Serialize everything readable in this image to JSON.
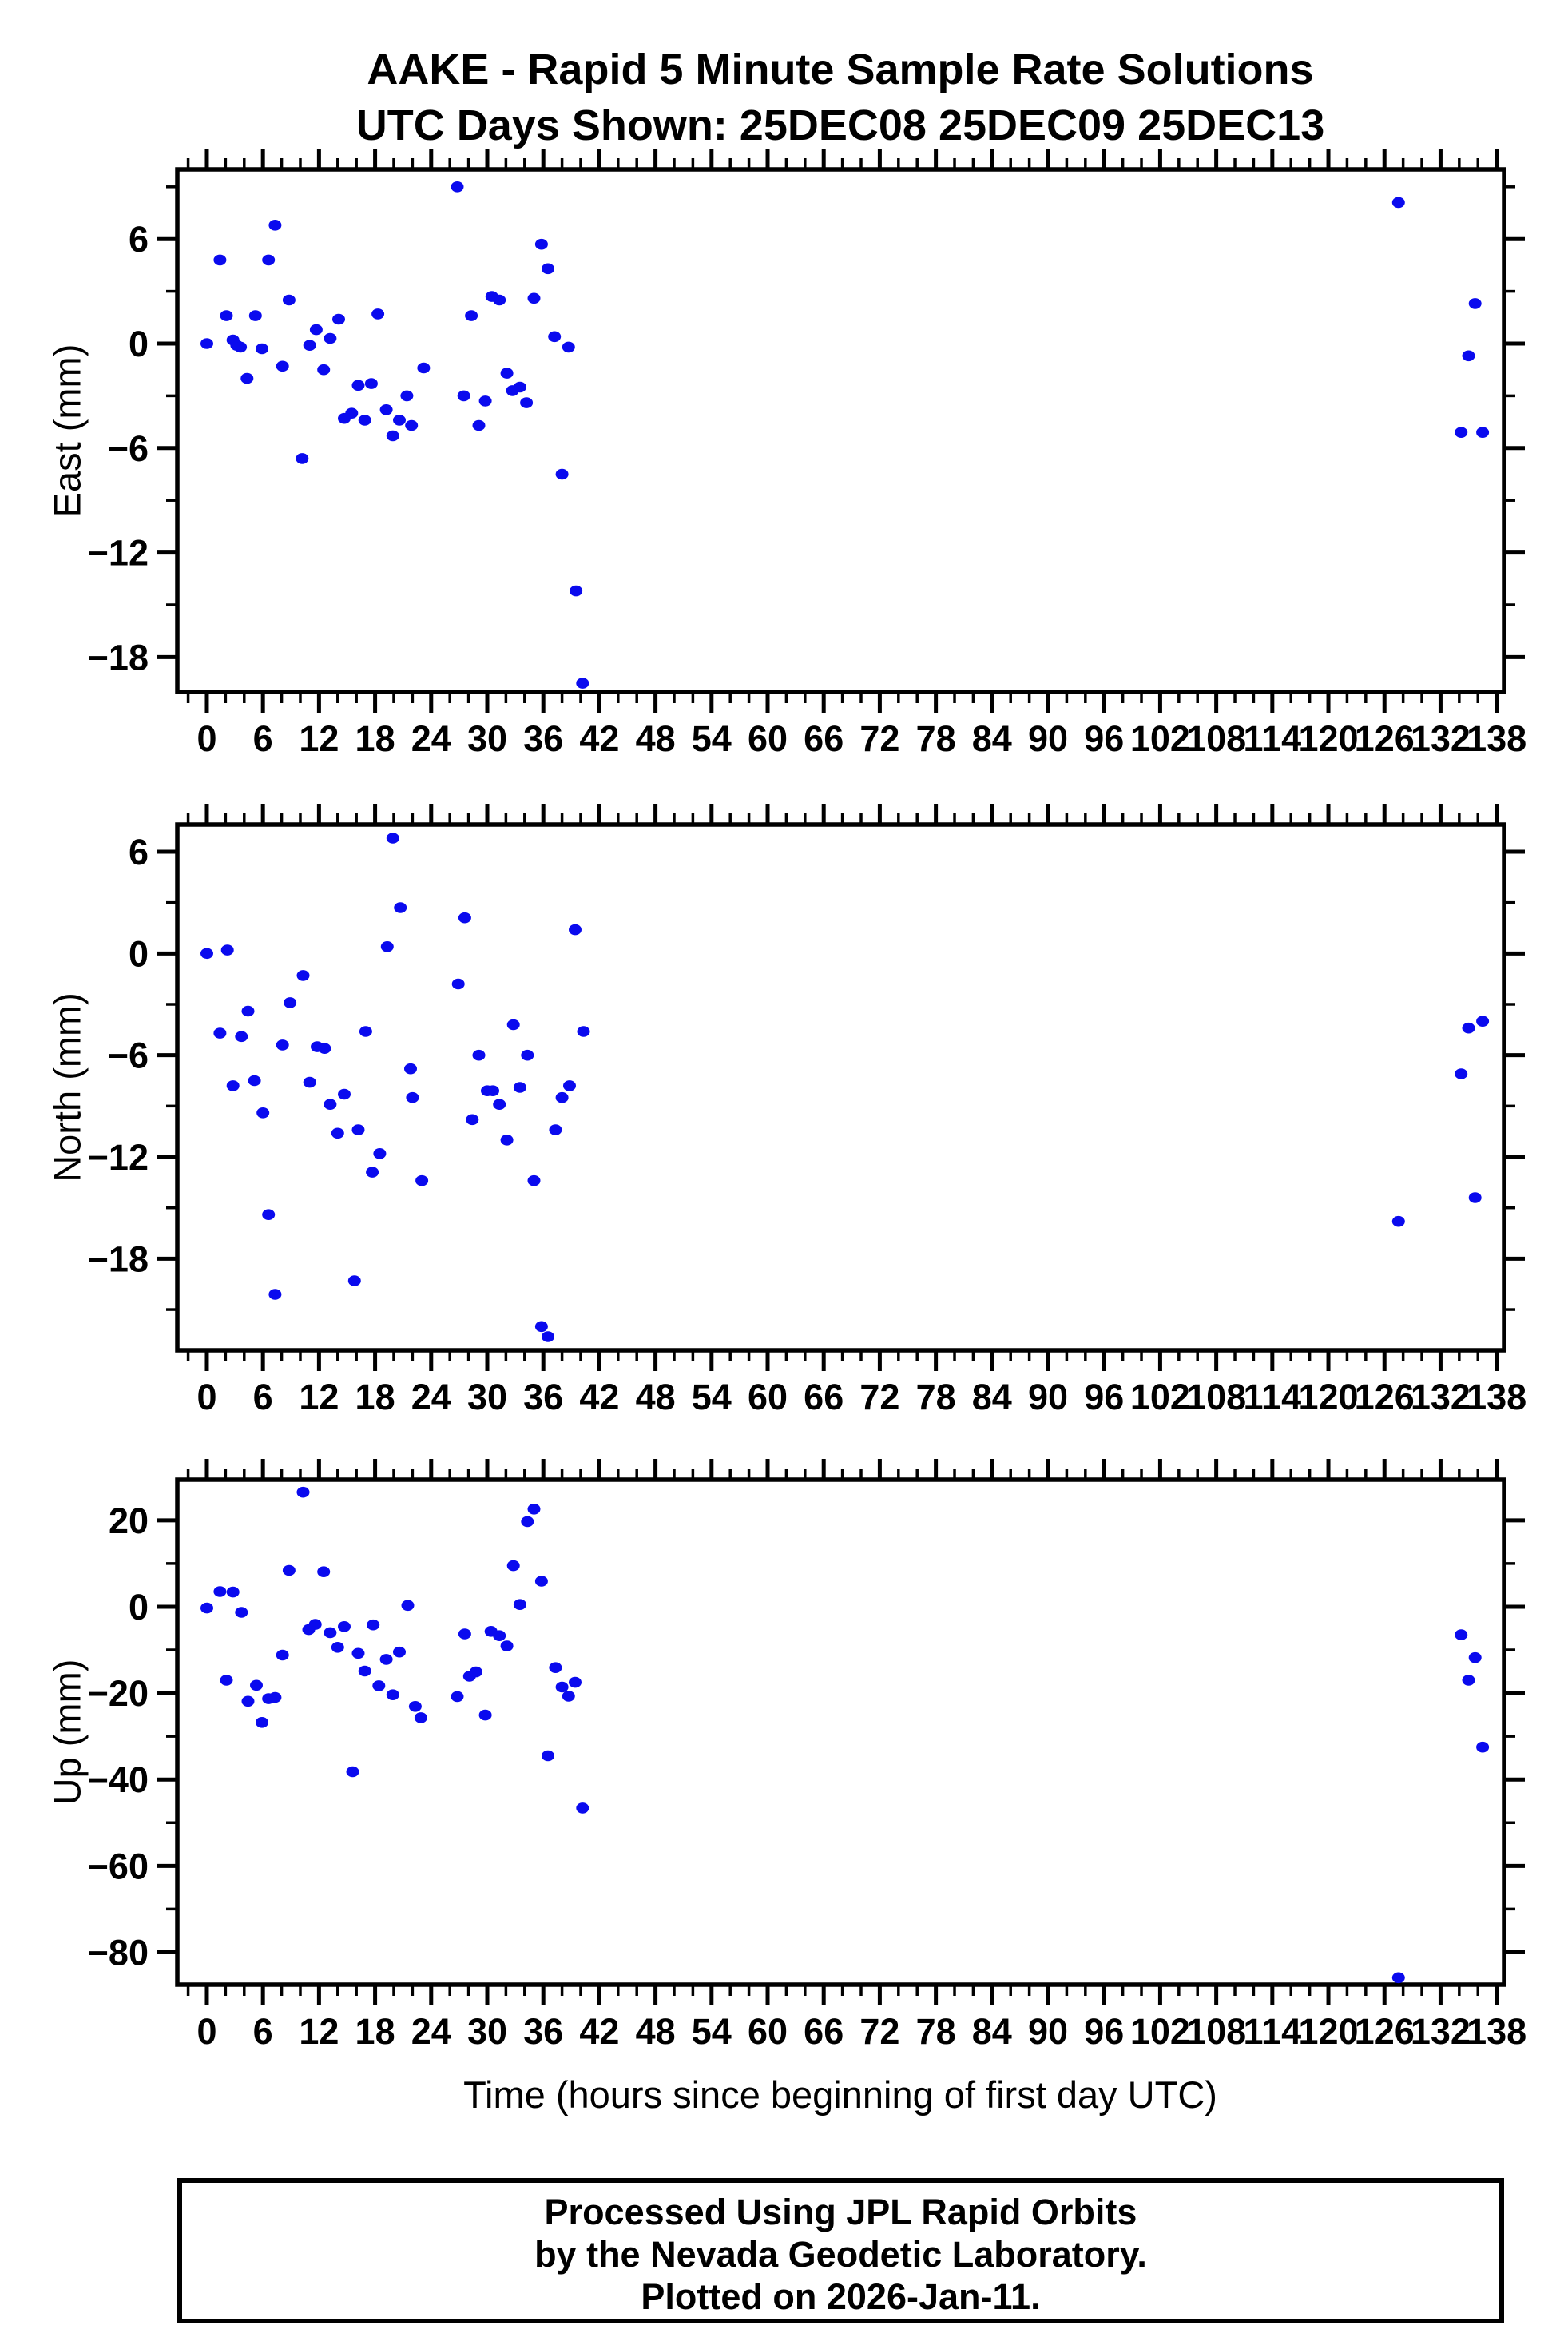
{
  "title": {
    "line1": "AAKE - Rapid 5 Minute Sample Rate Solutions",
    "line2": "UTC Days Shown:  25DEC08 25DEC09 25DEC13"
  },
  "point_color": "#0a0aee",
  "xaxis": {
    "title": "Time (hours since beginning of first day UTC)",
    "min": -3.16,
    "max": 138.8,
    "major_min": 0,
    "major_max": 138,
    "major_step": 6,
    "minor_step": 2
  },
  "chart_data": [
    {
      "type": "scatter",
      "name": "east",
      "ylabel": "East (mm)",
      "ylim": [
        -20,
        10
      ],
      "ymajor": [
        6,
        0,
        -6,
        -12,
        -18
      ],
      "yminor_step": 3,
      "points": [
        [
          0,
          0
        ],
        [
          1.4,
          4.8
        ],
        [
          2.1,
          1.6
        ],
        [
          2.8,
          0.2
        ],
        [
          3.2,
          -0.1
        ],
        [
          3.6,
          -0.2
        ],
        [
          4.3,
          -2
        ],
        [
          5.2,
          1.6
        ],
        [
          5.9,
          -0.3
        ],
        [
          6.6,
          4.8
        ],
        [
          7.3,
          6.8
        ],
        [
          8.1,
          -1.3
        ],
        [
          8.8,
          2.5
        ],
        [
          10.2,
          -6.6
        ],
        [
          11,
          -0.1
        ],
        [
          11.7,
          0.8
        ],
        [
          12.5,
          -1.5
        ],
        [
          13.2,
          0.3
        ],
        [
          14.1,
          1.4
        ],
        [
          14.7,
          -4.3
        ],
        [
          15.5,
          -4
        ],
        [
          16.2,
          -2.4
        ],
        [
          16.9,
          -4.4
        ],
        [
          17.6,
          -2.3
        ],
        [
          18.3,
          1.7
        ],
        [
          19.2,
          -3.8
        ],
        [
          19.9,
          -5.3
        ],
        [
          20.6,
          -4.4
        ],
        [
          21.4,
          -3
        ],
        [
          21.9,
          -4.7
        ],
        [
          23.2,
          -1.4
        ],
        [
          26.8,
          9
        ],
        [
          27.5,
          -3
        ],
        [
          28.3,
          1.6
        ],
        [
          29.1,
          -4.7
        ],
        [
          29.8,
          -3.3
        ],
        [
          30.5,
          2.7
        ],
        [
          31.3,
          2.5
        ],
        [
          32.1,
          -1.7
        ],
        [
          32.7,
          -2.7
        ],
        [
          33.5,
          -2.5
        ],
        [
          34.2,
          -3.4
        ],
        [
          35,
          2.6
        ],
        [
          35.8,
          5.7
        ],
        [
          36.5,
          4.3
        ],
        [
          37.2,
          0.4
        ],
        [
          38,
          -7.5
        ],
        [
          38.7,
          -0.2
        ],
        [
          39.5,
          -14.2
        ],
        [
          40.2,
          -19.5
        ],
        [
          127.5,
          8.1
        ],
        [
          134.2,
          -5.1
        ],
        [
          135,
          -0.7
        ],
        [
          135.7,
          2.3
        ],
        [
          136.5,
          -5.1
        ]
      ]
    },
    {
      "type": "scatter",
      "name": "north",
      "ylabel": "North (mm)",
      "ylim": [
        -23.4,
        7.6
      ],
      "ymajor": [
        6,
        0,
        -6,
        -12,
        -18
      ],
      "yminor_step": 3,
      "points": [
        [
          0,
          0
        ],
        [
          1.4,
          -4.7
        ],
        [
          2.2,
          0.2
        ],
        [
          2.8,
          -7.8
        ],
        [
          3.7,
          -4.9
        ],
        [
          4.4,
          -3.4
        ],
        [
          5.1,
          -7.5
        ],
        [
          6,
          -9.4
        ],
        [
          6.6,
          -15.4
        ],
        [
          7.3,
          -20.1
        ],
        [
          8.1,
          -5.4
        ],
        [
          8.9,
          -2.9
        ],
        [
          10.3,
          -1.3
        ],
        [
          11,
          -7.6
        ],
        [
          11.8,
          -5.5
        ],
        [
          12.6,
          -5.6
        ],
        [
          13.2,
          -8.9
        ],
        [
          14,
          -10.6
        ],
        [
          14.7,
          -8.3
        ],
        [
          15.8,
          -19.3
        ],
        [
          16.2,
          -10.4
        ],
        [
          17,
          -4.6
        ],
        [
          17.7,
          -12.9
        ],
        [
          18.5,
          -11.8
        ],
        [
          19.3,
          0.4
        ],
        [
          19.9,
          6.8
        ],
        [
          20.7,
          2.7
        ],
        [
          21.8,
          -6.8
        ],
        [
          22,
          -8.5
        ],
        [
          23,
          -13.4
        ],
        [
          26.9,
          -1.8
        ],
        [
          27.6,
          2.1
        ],
        [
          28.4,
          -9.8
        ],
        [
          29.1,
          -6
        ],
        [
          30,
          -8.1
        ],
        [
          30.6,
          -8.1
        ],
        [
          31.3,
          -8.9
        ],
        [
          32.1,
          -11
        ],
        [
          32.8,
          -4.2
        ],
        [
          33.5,
          -7.9
        ],
        [
          34.3,
          -6
        ],
        [
          35,
          -13.4
        ],
        [
          35.8,
          -22
        ],
        [
          36.5,
          -22.6
        ],
        [
          37.3,
          -10.4
        ],
        [
          38,
          -8.5
        ],
        [
          38.8,
          -7.8
        ],
        [
          39.4,
          1.4
        ],
        [
          40.3,
          -4.6
        ],
        [
          127.5,
          -15.8
        ],
        [
          134.2,
          -7.1
        ],
        [
          135,
          -4.4
        ],
        [
          135.7,
          -14.4
        ],
        [
          136.5,
          -4
        ]
      ]
    },
    {
      "type": "scatter",
      "name": "up",
      "ylabel": "Up (mm)",
      "ylim": [
        -87.5,
        29.4
      ],
      "ymajor": [
        20,
        0,
        -20,
        -40,
        -60,
        -80
      ],
      "yminor_step": 10,
      "points": [
        [
          0,
          -0.3
        ],
        [
          1.4,
          3.5
        ],
        [
          2.1,
          -17
        ],
        [
          2.8,
          3.4
        ],
        [
          3.7,
          -1.3
        ],
        [
          4.4,
          -21.9
        ],
        [
          5.3,
          -18.2
        ],
        [
          5.9,
          -26.8
        ],
        [
          6.6,
          -21.3
        ],
        [
          7.3,
          -21
        ],
        [
          8.1,
          -11.2
        ],
        [
          8.8,
          8.4
        ],
        [
          10.3,
          26.5
        ],
        [
          10.9,
          -5.3
        ],
        [
          11.6,
          -4.1
        ],
        [
          12.5,
          8.1
        ],
        [
          13.2,
          -6
        ],
        [
          14,
          -9.4
        ],
        [
          14.7,
          -4.6
        ],
        [
          15.6,
          -38.2
        ],
        [
          16.2,
          -10.8
        ],
        [
          16.9,
          -14.9
        ],
        [
          17.8,
          -4.2
        ],
        [
          18.4,
          -18.3
        ],
        [
          19.2,
          -12.2
        ],
        [
          19.9,
          -20.4
        ],
        [
          20.6,
          -10.5
        ],
        [
          21.5,
          0.3
        ],
        [
          22.3,
          -23.1
        ],
        [
          22.9,
          -25.7
        ],
        [
          26.8,
          -20.8
        ],
        [
          27.6,
          -6.3
        ],
        [
          28.1,
          -16.1
        ],
        [
          28.8,
          -15.1
        ],
        [
          29.8,
          -25.1
        ],
        [
          30.4,
          -5.7
        ],
        [
          31.3,
          -6.7
        ],
        [
          32.1,
          -9.1
        ],
        [
          32.8,
          9.5
        ],
        [
          33.5,
          0.5
        ],
        [
          34.3,
          19.7
        ],
        [
          35,
          22.6
        ],
        [
          35.8,
          5.9
        ],
        [
          36.5,
          -34.5
        ],
        [
          37.3,
          -14.1
        ],
        [
          38,
          -18.6
        ],
        [
          38.7,
          -20.7
        ],
        [
          39.4,
          -17.5
        ],
        [
          40.2,
          -46.6
        ],
        [
          127.5,
          -85.9
        ],
        [
          134.2,
          -6.5
        ],
        [
          135,
          -17
        ],
        [
          135.7,
          -11.8
        ],
        [
          136.5,
          -32.5
        ]
      ]
    }
  ],
  "footer": {
    "line1": "Processed Using JPL Rapid Orbits",
    "line2": "by the Nevada Geodetic Laboratory.",
    "line3": "Plotted on 2026-Jan-11."
  }
}
